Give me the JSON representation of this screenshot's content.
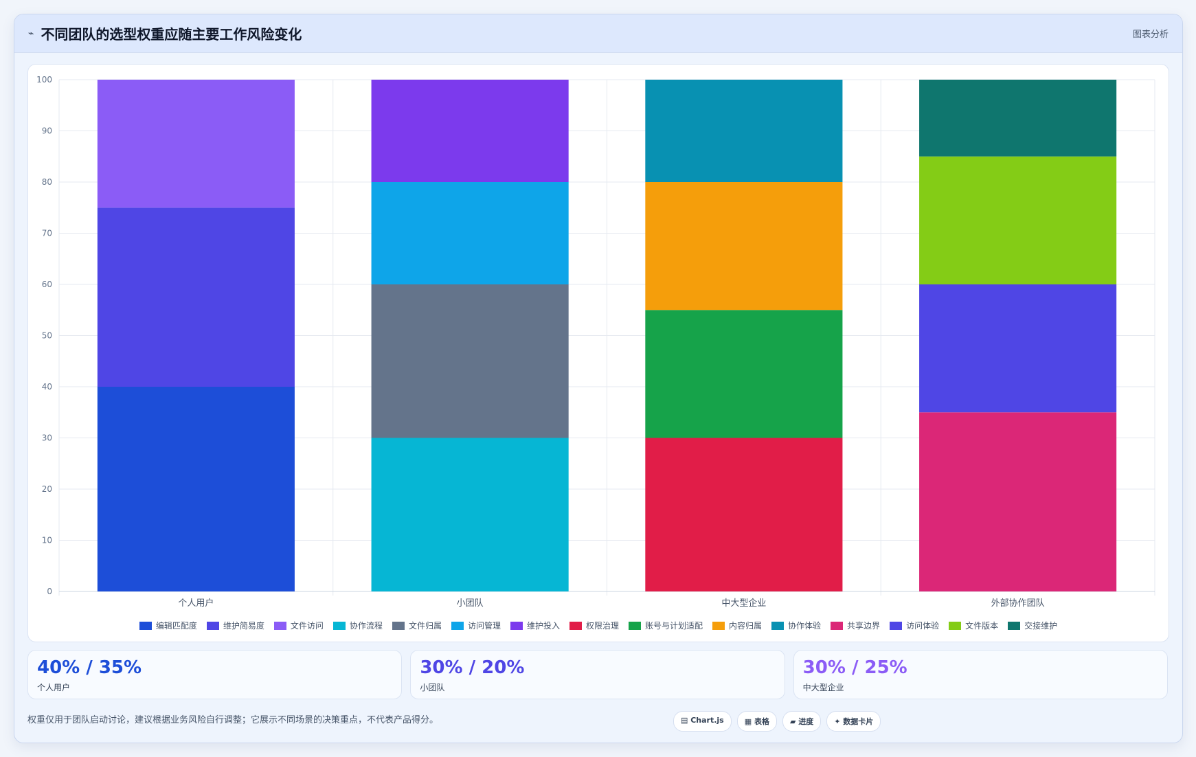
{
  "header": {
    "icon": "line-chart-icon",
    "title": "不同团队的选型权重应随主要工作风险变化",
    "action_label": "图表分析"
  },
  "chart_data": {
    "type": "bar",
    "stacked": true,
    "categories": [
      "个人用户",
      "小团队",
      "中大型企业",
      "外部协作团队"
    ],
    "ylim": [
      0,
      100
    ],
    "yticks": [
      0,
      10,
      20,
      30,
      40,
      50,
      60,
      70,
      80,
      90,
      100
    ],
    "grid": true,
    "legend_position": "bottom",
    "series": [
      {
        "name": "编辑匹配度",
        "color": "#1d4ed8",
        "values": [
          40,
          0,
          0,
          0
        ]
      },
      {
        "name": "维护简易度",
        "color": "#4f46e5",
        "values": [
          35,
          0,
          0,
          0
        ]
      },
      {
        "name": "文件访问",
        "color": "#8b5cf6",
        "values": [
          25,
          0,
          0,
          0
        ]
      },
      {
        "name": "协作流程",
        "color": "#06b6d4",
        "values": [
          0,
          30,
          0,
          0
        ]
      },
      {
        "name": "文件归属",
        "color": "#64748b",
        "values": [
          0,
          30,
          0,
          0
        ]
      },
      {
        "name": "访问管理",
        "color": "#0ea5e9",
        "values": [
          0,
          20,
          0,
          0
        ]
      },
      {
        "name": "维护投入",
        "color": "#7c3aed",
        "values": [
          0,
          20,
          0,
          0
        ]
      },
      {
        "name": "权限治理",
        "color": "#e11d48",
        "values": [
          0,
          0,
          30,
          0
        ]
      },
      {
        "name": "账号与计划适配",
        "color": "#16a34a",
        "values": [
          0,
          0,
          25,
          0
        ]
      },
      {
        "name": "内容归属",
        "color": "#f59e0b",
        "values": [
          0,
          0,
          25,
          0
        ]
      },
      {
        "name": "协作体验",
        "color": "#0891b2",
        "values": [
          0,
          0,
          20,
          0
        ]
      },
      {
        "name": "共享边界",
        "color": "#db2777",
        "values": [
          0,
          0,
          0,
          35
        ]
      },
      {
        "name": "访问体验",
        "color": "#4f46e5",
        "values": [
          0,
          0,
          0,
          25
        ]
      },
      {
        "name": "文件版本",
        "color": "#84cc16",
        "values": [
          0,
          0,
          0,
          25
        ]
      },
      {
        "name": "交接维护",
        "color": "#0f766e",
        "values": [
          0,
          0,
          0,
          15
        ]
      }
    ]
  },
  "stats": [
    {
      "value": "40% / 35%",
      "label": "个人用户",
      "color": "#1d4ed8"
    },
    {
      "value": "30% / 20%",
      "label": "小团队",
      "color": "#4f46e5"
    },
    {
      "value": "30% / 25%",
      "label": "中大型企业",
      "color": "#8b5cf6"
    }
  ],
  "footer": {
    "note": "权重仅用于团队启动讨论，建议根据业务风险自行调整；它展示不同场景的决策重点，不代表产品得分。",
    "chips": [
      {
        "icon": "chart-icon",
        "label": "▤ Chart.js"
      },
      {
        "icon": "table-icon",
        "label": "▦ 表格"
      },
      {
        "icon": "progress-icon",
        "label": "▰ 进度"
      },
      {
        "icon": "card-icon",
        "label": "✦ 数据卡片"
      }
    ]
  }
}
